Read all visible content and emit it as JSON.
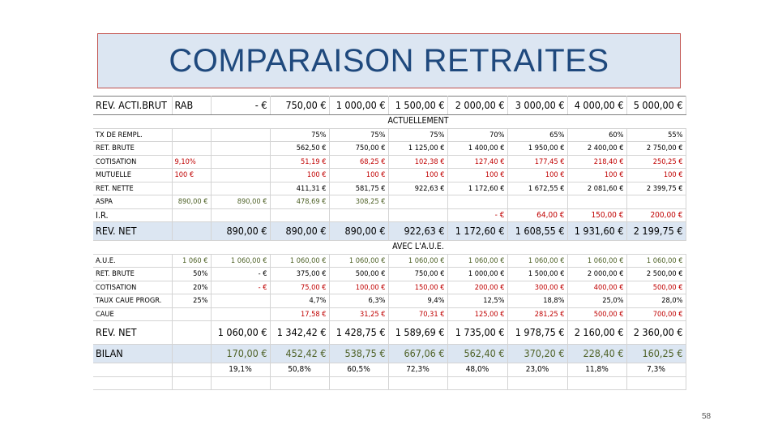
{
  "slide": {
    "title": "COMPARAISON RETRAITES",
    "page_number": "58"
  },
  "colors": {
    "title_text": "#1f497d",
    "title_background": "#dce6f2",
    "title_border": "#c0504d",
    "band": "#dce6f2",
    "red_text": "#c00000",
    "green_text": "#4f6228"
  },
  "table": {
    "header": {
      "label": "REV. ACTI.BRUT",
      "rab": "RAB",
      "cols": [
        "-     €",
        "750,00 €",
        "1 000,00 €",
        "1 500,00 €",
        "2 000,00 €",
        "3 000,00 €",
        "4 000,00 €",
        "5 000,00 €"
      ]
    },
    "section_actuellement": "ACTUELLEMENT",
    "tx_rempl": {
      "label": "TX DE REMPL.",
      "rab": "",
      "cols": [
        "",
        "75%",
        "75%",
        "75%",
        "70%",
        "65%",
        "60%",
        "55%"
      ]
    },
    "ret_brute": {
      "label": "RET. BRUTE",
      "rab": "",
      "cols": [
        "",
        "562,50 €",
        "750,00 €",
        "1 125,00 €",
        "1 400,00 €",
        "1 950,00 €",
        "2 400,00 €",
        "2 750,00 €"
      ]
    },
    "cotisation": {
      "label": "COTISATION",
      "rab": "9,10%",
      "cols": [
        "",
        "51,19 €",
        "68,25 €",
        "102,38 €",
        "127,40 €",
        "177,45 €",
        "218,40 €",
        "250,25 €"
      ]
    },
    "mutuelle": {
      "label": "MUTUELLE",
      "rab": "100 €",
      "cols": [
        "",
        "100 €",
        "100 €",
        "100 €",
        "100 €",
        "100 €",
        "100 €",
        "100 €"
      ]
    },
    "ret_nette": {
      "label": "RET. NETTE",
      "rab": "",
      "cols": [
        "",
        "411,31 €",
        "581,75 €",
        "922,63 €",
        "1 172,60 €",
        "1 672,55 €",
        "2 081,60 €",
        "2 399,75 €"
      ]
    },
    "aspa": {
      "label": "ASPA",
      "rab": "890,00  €",
      "cols": [
        "890,00 €",
        "478,69 €",
        "308,25 €",
        "",
        "",
        "",
        "",
        ""
      ]
    },
    "ir": {
      "label": "I.R.",
      "rab": "",
      "cols": [
        "",
        "",
        "",
        "",
        "-    €",
        "64,00 €",
        "150,00 €",
        "200,00 €"
      ]
    },
    "rev_net_1": {
      "label": "REV. NET",
      "rab": "",
      "cols": [
        "890,00 €",
        "890,00 €",
        "890,00 €",
        "922,63 €",
        "1 172,60 €",
        "1 608,55 €",
        "1 931,60 €",
        "2 199,75 €"
      ]
    },
    "section_avec": "AVEC L'A.U.E.",
    "aue": {
      "label": "A.U.E.",
      "rab": "1 060 €",
      "cols": [
        "1 060,00 €",
        "1 060,00 €",
        "1 060,00 €",
        "1 060,00 €",
        "1 060,00 €",
        "1 060,00 €",
        "1 060,00 €",
        "1 060,00 €"
      ]
    },
    "ret_brute_2": {
      "label": "RET. BRUTE",
      "rab": "50%",
      "cols": [
        "-     €",
        "375,00  €",
        "500,00  €",
        "750,00  €",
        "1 000,00  €",
        "1 500,00  €",
        "2 000,00  €",
        "2 500,00  €"
      ]
    },
    "cotisation_2": {
      "label": "COTISATION",
      "rab": "20%",
      "cols": [
        "-     €",
        "75,00 €",
        "100,00 €",
        "150,00 €",
        "200,00 €",
        "300,00 €",
        "400,00 €",
        "500,00 €"
      ]
    },
    "taux_caue": {
      "label": "TAUX CAUE PROGR.",
      "rab": "25%",
      "cols": [
        "",
        "4,7%",
        "6,3%",
        "9,4%",
        "12,5%",
        "18,8%",
        "25,0%",
        "28,0%"
      ]
    },
    "caue": {
      "label": "CAUE",
      "rab": "",
      "cols": [
        "",
        "17,58 €",
        "31,25 €",
        "70,31 €",
        "125,00 €",
        "281,25 €",
        "500,00 €",
        "700,00 €"
      ]
    },
    "rev_net_2": {
      "label": "REV. NET",
      "rab": "",
      "cols": [
        "1 060,00 €",
        "1 342,42 €",
        "1 428,75 €",
        "1 589,69 €",
        "1 735,00 €",
        "1 978,75 €",
        "2 160,00 €",
        "2 360,00 €"
      ]
    },
    "bilan": {
      "label": "BILAN",
      "rab": "",
      "cols": [
        "170,00 €",
        "452,42 €",
        "538,75 €",
        "667,06 €",
        "562,40 €",
        "370,20 €",
        "228,40 €",
        "160,25 €"
      ]
    },
    "bilan_pct": {
      "cols": [
        "19,1%",
        "50,8%",
        "60,5%",
        "72,3%",
        "48,0%",
        "23,0%",
        "11,8%",
        "7,3%"
      ]
    }
  }
}
